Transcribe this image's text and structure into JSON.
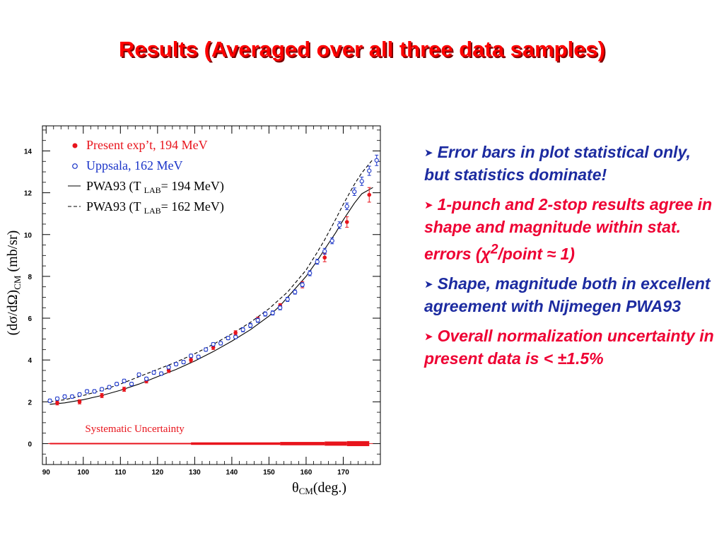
{
  "title": "Results (Averaged over all three data samples)",
  "colors": {
    "title": "#ff0000",
    "present": "#e8141c",
    "uppsala": "#1a34c8",
    "blue_text": "#1c2ba0",
    "red_text": "#ee0033"
  },
  "bullets": [
    {
      "arrow_icon": "arrow-bullet-icon",
      "color": "blue",
      "html": "Error bars in plot statistical only, but statistics dominate!"
    },
    {
      "arrow_icon": "arrow-bullet-icon",
      "color": "red",
      "html": "1-punch and 2-stop results agree in shape and magnitude within stat. errors (&chi;<sup>2</sup>/point &asymp; 1)"
    },
    {
      "arrow_icon": "arrow-bullet-icon",
      "color": "blue",
      "html": "Shape, magnitude both in excellent agreement with Nijmegen PWA93"
    },
    {
      "arrow_icon": "arrow-bullet-icon",
      "color": "red",
      "html": "Overall normalization uncertainty in present data is &lt; &plusmn;1.5%"
    }
  ],
  "chart_data": {
    "type": "scatter",
    "xlabel": "θCM(deg.)",
    "ylabel": "(dσ/dΩ)CM (mb/sr)",
    "xlim": [
      89,
      180
    ],
    "ylim": [
      -1,
      15.2
    ],
    "xticks": [
      90,
      100,
      110,
      120,
      130,
      140,
      150,
      160,
      170
    ],
    "yticks": [
      0,
      2,
      4,
      6,
      8,
      10,
      12,
      14
    ],
    "legend_position": "top-left",
    "legend": [
      {
        "symbol": "filled-circle",
        "label": "Present exp’t, 194 MeV"
      },
      {
        "symbol": "open-circle",
        "label": "Uppsala, 162 MeV"
      },
      {
        "symbol": "solid-line",
        "label": "PWA93 (T LAB= 194 MeV)"
      },
      {
        "symbol": "dashed-line",
        "label": "PWA93 (T LAB= 162 MeV)"
      }
    ],
    "annotation": "Systematic Uncertainty",
    "series": [
      {
        "name": "Present exp’t, 194 MeV",
        "marker": "filled",
        "x": [
          93,
          99,
          105,
          111,
          117,
          123,
          129,
          135,
          141,
          147,
          153,
          159,
          165,
          171,
          177
        ],
        "y": [
          1.95,
          2.0,
          2.3,
          2.6,
          3.0,
          3.5,
          4.0,
          4.6,
          5.3,
          5.95,
          6.6,
          7.6,
          8.9,
          10.6,
          11.9
        ],
        "err": [
          0.1,
          0.1,
          0.1,
          0.1,
          0.1,
          0.1,
          0.1,
          0.1,
          0.1,
          0.1,
          0.1,
          0.15,
          0.2,
          0.25,
          0.35
        ]
      },
      {
        "name": "Uppsala, 162 MeV",
        "marker": "open",
        "x": [
          91,
          93,
          95,
          97,
          99,
          101,
          103,
          105,
          107,
          109,
          111,
          113,
          115,
          117,
          119,
          121,
          123,
          125,
          127,
          129,
          131,
          133,
          135,
          137,
          139,
          141,
          143,
          145,
          147,
          149,
          151,
          153,
          155,
          157,
          159,
          161,
          163,
          165,
          167,
          169,
          171,
          173,
          175,
          177,
          179
        ],
        "y": [
          2.05,
          2.15,
          2.25,
          2.25,
          2.35,
          2.5,
          2.5,
          2.6,
          2.7,
          2.85,
          3.0,
          2.85,
          3.3,
          3.1,
          3.4,
          3.35,
          3.65,
          3.8,
          3.9,
          4.2,
          4.15,
          4.5,
          4.75,
          4.8,
          5.05,
          5.1,
          5.45,
          5.65,
          5.9,
          6.2,
          6.25,
          6.5,
          6.9,
          7.25,
          7.6,
          8.15,
          8.7,
          9.2,
          9.7,
          10.45,
          11.35,
          12.05,
          12.55,
          13.05,
          13.55
        ],
        "err": [
          0.08,
          0.08,
          0.08,
          0.08,
          0.08,
          0.08,
          0.08,
          0.08,
          0.08,
          0.08,
          0.08,
          0.08,
          0.08,
          0.08,
          0.08,
          0.08,
          0.08,
          0.08,
          0.08,
          0.08,
          0.08,
          0.08,
          0.08,
          0.08,
          0.08,
          0.08,
          0.1,
          0.1,
          0.1,
          0.1,
          0.1,
          0.1,
          0.1,
          0.1,
          0.1,
          0.12,
          0.12,
          0.14,
          0.14,
          0.16,
          0.16,
          0.18,
          0.2,
          0.22,
          0.25
        ]
      },
      {
        "name": "PWA93 (T LAB= 194 MeV)",
        "line": "solid",
        "x": [
          91,
          95,
          100,
          105,
          110,
          115,
          120,
          125,
          130,
          135,
          140,
          145,
          150,
          153,
          155,
          158,
          160,
          163,
          165,
          168,
          170,
          173,
          175,
          178
        ],
        "y": [
          1.88,
          1.95,
          2.1,
          2.3,
          2.55,
          2.85,
          3.2,
          3.55,
          3.95,
          4.4,
          4.9,
          5.45,
          6.1,
          6.6,
          7.0,
          7.6,
          8.0,
          8.75,
          9.3,
          10.1,
          10.7,
          11.5,
          11.95,
          12.25
        ]
      },
      {
        "name": "PWA93 (T LAB= 162 MeV)",
        "line": "dashed",
        "x": [
          91,
          95,
          100,
          105,
          110,
          115,
          120,
          125,
          130,
          135,
          140,
          145,
          150,
          155,
          160,
          163,
          165,
          168,
          170,
          173,
          175,
          178
        ],
        "y": [
          2.0,
          2.1,
          2.3,
          2.55,
          2.85,
          3.2,
          3.55,
          3.9,
          4.3,
          4.75,
          5.25,
          5.8,
          6.45,
          7.25,
          8.3,
          9.15,
          9.75,
          10.75,
          11.45,
          12.4,
          12.95,
          13.6
        ]
      },
      {
        "name": "Systematic Uncertainty",
        "type": "band",
        "x": [
          91,
          129,
          153,
          165,
          171,
          177
        ],
        "y": [
          0.02,
          0.06,
          0.08,
          0.1,
          0.12,
          0.14
        ]
      }
    ]
  }
}
